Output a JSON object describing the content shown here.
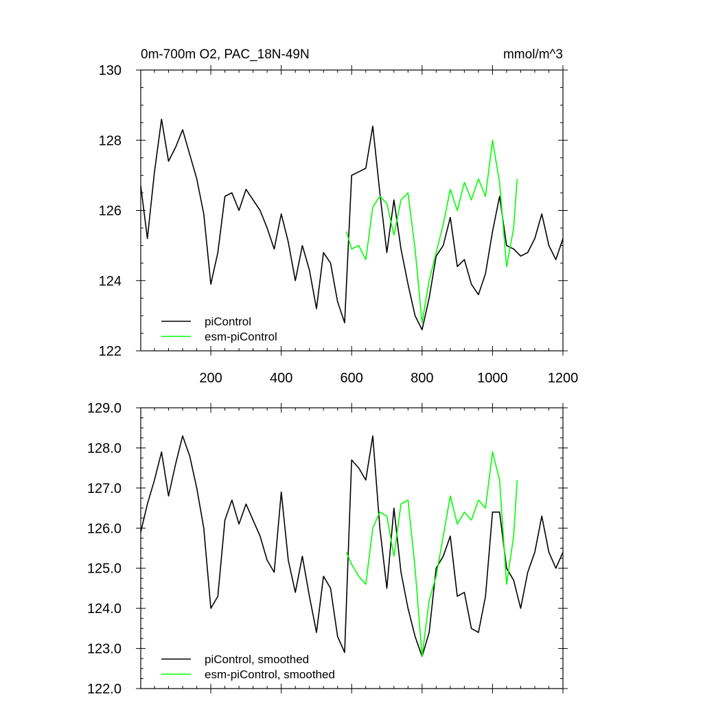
{
  "chart_data": [
    {
      "type": "line",
      "title_left": "0m-700m O2, PAC_18N-49N",
      "title_right": "mmol/m^3",
      "xlim": [
        1,
        1200
      ],
      "ylim": [
        122,
        130
      ],
      "xticks": [
        200,
        400,
        600,
        800,
        1000,
        1200
      ],
      "xtick_labels": [
        "200",
        "400",
        "600",
        "800",
        "1000",
        "1200"
      ],
      "yticks": [
        122,
        124,
        126,
        128,
        130
      ],
      "ytick_labels": [
        "122",
        "124",
        "126",
        "128",
        "130"
      ],
      "grid": false,
      "legend_position": "bottom-left",
      "series": [
        {
          "name": "piControl",
          "color": "#000000",
          "x": [
            1,
            20,
            40,
            60,
            80,
            100,
            120,
            140,
            160,
            180,
            200,
            220,
            240,
            260,
            280,
            300,
            320,
            340,
            360,
            380,
            400,
            420,
            440,
            460,
            480,
            500,
            520,
            540,
            560,
            580,
            600,
            620,
            640,
            660,
            680,
            700,
            720,
            740,
            760,
            780,
            800,
            820,
            840,
            860,
            880,
            900,
            920,
            940,
            960,
            980,
            1000,
            1020,
            1040,
            1060,
            1080,
            1100,
            1120,
            1140,
            1160,
            1180,
            1200
          ],
          "values": [
            126.7,
            125.2,
            127.1,
            128.6,
            127.4,
            127.8,
            128.3,
            127.6,
            126.9,
            125.9,
            123.9,
            124.8,
            126.4,
            126.5,
            126.0,
            126.6,
            126.3,
            126.0,
            125.5,
            124.9,
            125.9,
            125.1,
            124.0,
            125.0,
            124.3,
            123.2,
            124.8,
            124.5,
            123.4,
            122.8,
            127.0,
            127.1,
            127.2,
            128.4,
            126.5,
            124.8,
            126.3,
            124.9,
            123.9,
            123.0,
            122.6,
            123.5,
            124.7,
            125.0,
            125.8,
            124.4,
            124.6,
            123.9,
            123.6,
            124.2,
            125.4,
            126.4,
            125.0,
            124.9,
            124.7,
            124.8,
            125.2,
            125.9,
            125.0,
            124.6,
            125.2
          ]
        },
        {
          "name": "esm-piControl",
          "color": "#00ff00",
          "x": [
            585,
            600,
            620,
            640,
            660,
            680,
            700,
            720,
            740,
            760,
            780,
            800,
            820,
            840,
            860,
            880,
            900,
            920,
            940,
            960,
            980,
            1000,
            1020,
            1040,
            1060,
            1070
          ],
          "values": [
            125.4,
            124.9,
            125.0,
            124.6,
            126.1,
            126.4,
            126.2,
            125.3,
            126.3,
            126.5,
            124.9,
            122.8,
            124.0,
            124.8,
            125.6,
            126.6,
            126.0,
            126.8,
            126.3,
            126.9,
            126.4,
            128.0,
            126.8,
            124.4,
            125.5,
            126.9
          ]
        }
      ]
    },
    {
      "type": "line",
      "xlim": [
        1,
        1200
      ],
      "ylim": [
        122.0,
        129.0
      ],
      "xticks": [
        200,
        400,
        600,
        800,
        1000,
        1200
      ],
      "xtick_labels": [],
      "yticks": [
        122.0,
        123.0,
        124.0,
        125.0,
        126.0,
        127.0,
        128.0,
        129.0
      ],
      "ytick_labels": [
        "122.0",
        "123.0",
        "124.0",
        "125.0",
        "126.0",
        "127.0",
        "128.0",
        "129.0"
      ],
      "grid": false,
      "legend_position": "bottom-left",
      "series": [
        {
          "name": "piControl, smoothed",
          "color": "#000000",
          "x": [
            1,
            20,
            40,
            60,
            80,
            100,
            120,
            140,
            160,
            180,
            200,
            220,
            240,
            260,
            280,
            300,
            320,
            340,
            360,
            380,
            400,
            420,
            440,
            460,
            480,
            500,
            520,
            540,
            560,
            580,
            600,
            620,
            640,
            660,
            680,
            700,
            720,
            740,
            760,
            780,
            800,
            820,
            840,
            860,
            880,
            900,
            920,
            940,
            960,
            980,
            1000,
            1020,
            1040,
            1060,
            1080,
            1100,
            1120,
            1140,
            1160,
            1180,
            1200
          ],
          "values": [
            125.9,
            126.6,
            127.2,
            127.9,
            126.8,
            127.6,
            128.3,
            127.8,
            127.0,
            126.0,
            124.0,
            124.3,
            126.2,
            126.7,
            126.1,
            126.6,
            126.2,
            125.8,
            125.2,
            124.9,
            126.9,
            125.2,
            124.4,
            125.3,
            124.3,
            123.4,
            124.8,
            124.5,
            123.3,
            122.9,
            127.7,
            127.5,
            127.2,
            128.3,
            126.0,
            124.5,
            126.5,
            124.9,
            124.0,
            123.3,
            122.8,
            123.4,
            125.0,
            125.3,
            125.8,
            124.3,
            124.4,
            123.5,
            123.4,
            124.3,
            126.4,
            126.4,
            125.0,
            124.7,
            124.0,
            124.9,
            125.4,
            126.3,
            125.4,
            125.0,
            125.4
          ]
        },
        {
          "name": "esm-piControl, smoothed",
          "color": "#00ff00",
          "x": [
            585,
            600,
            620,
            640,
            660,
            680,
            700,
            720,
            740,
            760,
            780,
            800,
            820,
            840,
            860,
            880,
            900,
            920,
            940,
            960,
            980,
            1000,
            1020,
            1040,
            1060,
            1070
          ],
          "values": [
            125.4,
            125.1,
            124.8,
            124.6,
            126.0,
            126.4,
            126.3,
            125.3,
            126.6,
            126.7,
            125.0,
            122.8,
            124.2,
            124.8,
            125.8,
            126.8,
            126.1,
            126.4,
            126.2,
            126.7,
            126.5,
            127.9,
            127.2,
            124.6,
            125.8,
            127.2
          ]
        }
      ]
    }
  ]
}
